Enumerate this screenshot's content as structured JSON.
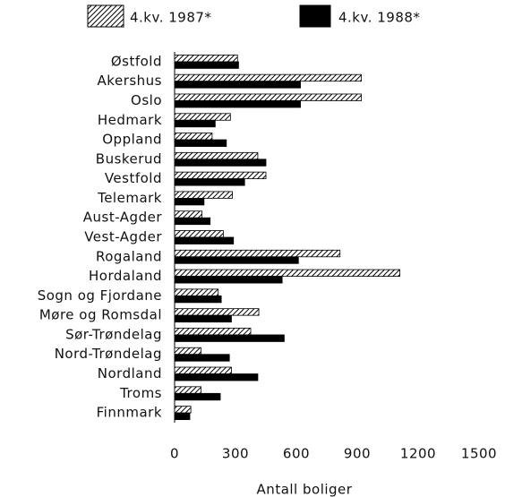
{
  "chart_data": {
    "type": "bar",
    "orientation": "horizontal",
    "x_label": "Antall boliger",
    "categories": [
      "Østfold",
      "Akershus",
      "Oslo",
      "Hedmark",
      "Oppland",
      "Buskerud",
      "Vestfold",
      "Telemark",
      "Aust-Agder",
      "Vest-Agder",
      "Rogaland",
      "Hordaland",
      "Sogn og Fjordane",
      "Møre og Romsdal",
      "Sør-Trøndelag",
      "Nord-Trøndelag",
      "Nordland",
      "Troms",
      "Finnmark"
    ],
    "series": [
      {
        "name": "4.kv. 1987*",
        "color": "#000000",
        "pattern": "hatch",
        "values": [
          310,
          920,
          920,
          275,
          185,
          410,
          450,
          285,
          135,
          240,
          815,
          1110,
          215,
          415,
          375,
          130,
          280,
          130,
          80
        ]
      },
      {
        "name": "4.kv. 1988*",
        "color": "#000000",
        "pattern": "solid",
        "values": [
          315,
          620,
          620,
          200,
          255,
          450,
          345,
          145,
          175,
          290,
          610,
          530,
          230,
          280,
          540,
          270,
          410,
          225,
          75
        ]
      }
    ],
    "xlim": [
      0,
      1500
    ],
    "xticks": [
      0,
      300,
      600,
      900,
      1200,
      1500
    ]
  }
}
